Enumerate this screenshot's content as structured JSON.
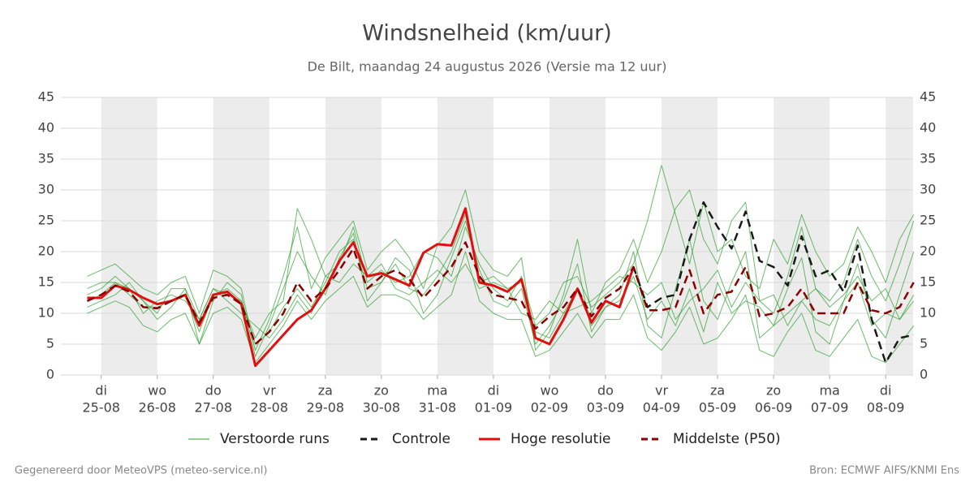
{
  "chart_data": {
    "type": "line",
    "title": "Windsnelheid (km/uur)",
    "subtitle": "De Bilt, maandag 24 augustus 2026 (Versie ma 12 uur)",
    "footer_left": "Gegenereerd door MeteoVPS (meteo-service.nl)",
    "footer_right": "Bron: ECMWF AIFS/KNMI Ens",
    "xlim": [
      -0.72,
      14.49
    ],
    "xticks": [
      {
        "value": 0,
        "label": "di"
      },
      {
        "value": 1,
        "label": "wo"
      },
      {
        "value": 2,
        "label": "do"
      },
      {
        "value": 3,
        "label": "vr"
      },
      {
        "value": 4,
        "label": "za"
      },
      {
        "value": 5,
        "label": "zo"
      },
      {
        "value": 6,
        "label": "ma"
      },
      {
        "value": 7,
        "label": "di"
      },
      {
        "value": 8,
        "label": "wo"
      },
      {
        "value": 9,
        "label": "do"
      },
      {
        "value": 10,
        "label": "vr"
      },
      {
        "value": 11,
        "label": "za"
      },
      {
        "value": 12,
        "label": "zo"
      },
      {
        "value": 13,
        "label": "ma"
      },
      {
        "value": 14,
        "label": "di"
      }
    ],
    "xtick_dates": [
      "25-08",
      "26-08",
      "27-08",
      "28-08",
      "29-08",
      "30-08",
      "31-08",
      "01-09",
      "02-09",
      "03-09",
      "04-09",
      "05-09",
      "06-09",
      "07-09",
      "08-09"
    ],
    "ylim": [
      0,
      45
    ],
    "yticks": [
      0,
      5,
      10,
      15,
      20,
      25,
      30,
      35,
      40,
      45
    ],
    "y2lim": [
      0,
      45
    ],
    "y2ticks": [
      0,
      5,
      10,
      15,
      20,
      25,
      30,
      35,
      40,
      45
    ],
    "grid": true,
    "x": [
      -0.25,
      0,
      0.25,
      0.5,
      0.75,
      1,
      1.25,
      1.5,
      1.75,
      2,
      2.25,
      2.5,
      2.75,
      3,
      3.25,
      3.5,
      3.75,
      4,
      4.25,
      4.5,
      4.75,
      5,
      5.25,
      5.5,
      5.75,
      6,
      6.25,
      6.5,
      6.75,
      7,
      7.25,
      7.5,
      7.75,
      8,
      8.25,
      8.5,
      8.75,
      9,
      9.25,
      9.5,
      9.75,
      10,
      10.25,
      10.5,
      10.75,
      11,
      11.25,
      11.5,
      11.75,
      12,
      12.25,
      12.5,
      12.75,
      13,
      13.25,
      13.5,
      13.75,
      14,
      14.25,
      14.5
    ],
    "series": [
      {
        "name": "Verstoorde runs",
        "color": "#2ca02c",
        "members": [
          [
            11,
            12,
            13,
            15,
            12,
            9,
            11,
            14,
            5,
            12,
            15,
            13,
            3,
            8,
            14,
            20,
            16,
            13,
            19,
            23,
            12,
            15,
            19,
            17,
            10,
            13,
            19,
            25,
            17,
            12,
            11,
            14,
            5,
            8,
            12,
            18,
            7,
            11,
            13,
            20,
            8,
            6,
            14,
            22,
            12,
            9,
            15,
            20,
            6,
            8,
            14,
            19,
            7,
            5,
            12,
            18,
            9,
            6,
            13,
            20
          ],
          [
            13,
            14,
            16,
            14,
            10,
            12,
            13,
            12,
            9,
            14,
            12,
            10,
            8,
            6,
            9,
            13,
            10,
            16,
            15,
            18,
            16,
            18,
            14,
            13,
            15,
            17,
            15,
            18,
            14,
            15,
            14,
            10,
            9,
            12,
            10,
            11,
            12,
            14,
            16,
            15,
            13,
            15,
            9,
            12,
            14,
            17,
            11,
            15,
            12,
            13,
            8,
            12,
            14,
            11,
            13,
            16,
            12,
            14,
            9,
            13
          ],
          [
            16,
            17,
            18,
            16,
            14,
            13,
            15,
            16,
            10,
            17,
            16,
            14,
            4,
            9,
            16,
            24,
            14,
            19,
            22,
            25,
            17,
            20,
            22,
            19,
            14,
            21,
            24,
            30,
            20,
            17,
            16,
            19,
            4,
            7,
            13,
            22,
            10,
            15,
            17,
            22,
            15,
            20,
            27,
            30,
            22,
            18,
            25,
            28,
            12,
            10,
            16,
            24,
            14,
            12,
            15,
            22,
            16,
            12,
            18,
            25
          ],
          [
            10,
            11,
            12,
            11,
            8,
            7,
            9,
            10,
            5,
            10,
            11,
            9,
            2,
            5,
            8,
            12,
            9,
            12,
            14,
            16,
            11,
            13,
            13,
            12,
            9,
            11,
            13,
            20,
            12,
            10,
            9,
            9,
            3,
            4,
            7,
            10,
            6,
            9,
            9,
            13,
            6,
            4,
            7,
            11,
            5,
            6,
            9,
            13,
            4,
            3,
            7,
            10,
            4,
            3,
            6,
            9,
            3,
            2,
            5,
            8
          ],
          [
            12,
            13,
            15,
            13,
            11,
            11,
            12,
            13,
            7,
            13,
            14,
            12,
            6,
            10,
            12,
            27,
            22,
            16,
            18,
            24,
            15,
            17,
            15,
            16,
            20,
            19,
            16,
            24,
            18,
            14,
            12,
            16,
            8,
            10,
            15,
            16,
            11,
            13,
            15,
            18,
            25,
            34,
            26,
            18,
            28,
            20,
            22,
            16,
            14,
            22,
            18,
            26,
            20,
            16,
            18,
            24,
            20,
            15,
            22,
            26
          ],
          [
            14,
            15,
            15,
            14,
            12,
            10,
            14,
            14,
            9,
            14,
            13,
            12,
            5,
            7,
            11,
            14,
            11,
            15,
            20,
            22,
            14,
            15,
            18,
            14,
            13,
            16,
            20,
            26,
            15,
            16,
            14,
            15,
            7,
            6,
            10,
            14,
            8,
            11,
            12,
            16,
            9,
            12,
            8,
            14,
            7,
            15,
            10,
            12,
            11,
            8,
            10,
            12,
            9,
            8,
            12,
            15,
            8,
            10,
            9,
            12
          ]
        ]
      },
      {
        "name": "Controle",
        "color": "#1a1a1a",
        "dashed": true,
        "values": [
          12.5,
          12.5,
          14.5,
          13.8,
          12.5,
          11.5,
          12,
          13,
          8,
          13,
          13.5,
          11.5,
          1.5,
          4,
          6.5,
          9,
          10.5,
          14,
          18.5,
          21.5,
          16,
          16.5,
          15.5,
          14.5,
          19.8,
          21.2,
          21,
          27,
          15,
          14.5,
          13.5,
          15.5,
          6,
          5,
          9,
          14,
          8.5,
          12,
          11,
          17.5,
          11,
          12.5,
          13,
          22,
          28,
          24,
          20.5,
          26.5,
          18.5,
          17.5,
          14.5,
          22.5,
          16,
          17,
          13.5,
          21,
          9,
          2,
          6,
          6.5
        ]
      },
      {
        "name": "Hoge resolutie",
        "color": "#e01010",
        "values": [
          12.5,
          12.5,
          14.5,
          13.8,
          12.5,
          11.5,
          12,
          13,
          8,
          13,
          13.5,
          11.5,
          1.5,
          4,
          6.5,
          9,
          10.5,
          14,
          18.5,
          21.5,
          16,
          16.5,
          15.5,
          14.5,
          19.8,
          21.2,
          21,
          27,
          15,
          14.5,
          13.5,
          15.5,
          6,
          5,
          9,
          14,
          8.5,
          12,
          11,
          17.5,
          null,
          null,
          null,
          null,
          null,
          null,
          null,
          null,
          null,
          null,
          null,
          null,
          null,
          null,
          null,
          null,
          null,
          null,
          null,
          null
        ]
      },
      {
        "name": "Middelste (P50)",
        "color": "#8b0000",
        "dashed": true,
        "values": [
          12,
          13,
          14.5,
          13.5,
          11,
          10.8,
          12,
          13,
          8.5,
          12.5,
          13,
          11.5,
          5,
          7,
          10,
          15,
          12,
          14,
          17,
          20.5,
          14,
          16,
          17,
          15.5,
          12.5,
          15,
          17.5,
          21.5,
          16,
          13,
          12.5,
          12,
          7.5,
          9.5,
          11,
          14,
          9.5,
          12.5,
          14,
          17.5,
          10.5,
          10.5,
          11,
          17,
          10,
          13,
          13.5,
          17.5,
          9.5,
          10,
          11,
          14,
          10,
          10,
          10,
          15,
          10.5,
          10,
          11,
          15
        ]
      }
    ]
  }
}
